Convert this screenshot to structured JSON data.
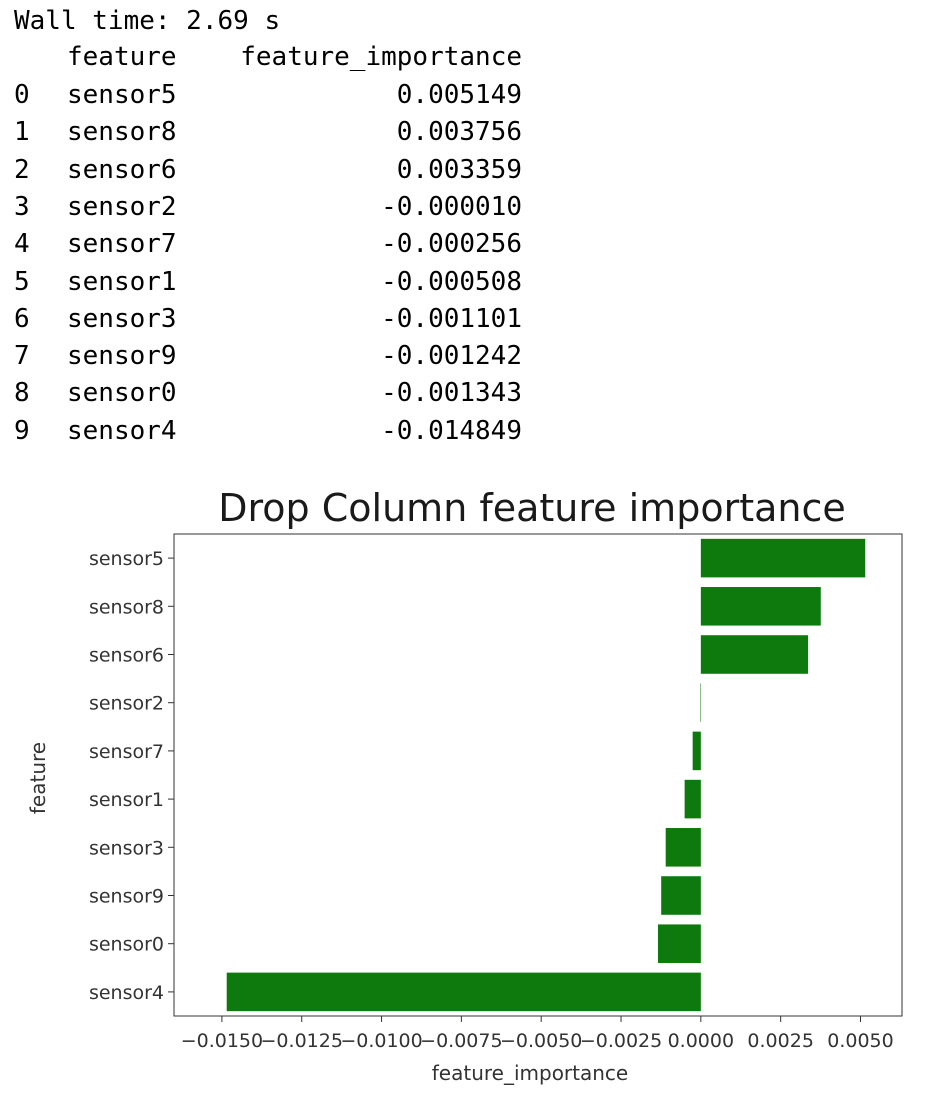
{
  "output": {
    "wall_time": "Wall time: 2.69 s",
    "table": {
      "columns": [
        "feature",
        "feature_importance"
      ],
      "rows": [
        {
          "index": "0",
          "feature": "sensor5",
          "value": "0.005149"
        },
        {
          "index": "1",
          "feature": "sensor8",
          "value": "0.003756"
        },
        {
          "index": "2",
          "feature": "sensor6",
          "value": "0.003359"
        },
        {
          "index": "3",
          "feature": "sensor2",
          "value": "-0.000010"
        },
        {
          "index": "4",
          "feature": "sensor7",
          "value": "-0.000256"
        },
        {
          "index": "5",
          "feature": "sensor1",
          "value": "-0.000508"
        },
        {
          "index": "6",
          "feature": "sensor3",
          "value": "-0.001101"
        },
        {
          "index": "7",
          "feature": "sensor9",
          "value": "-0.001242"
        },
        {
          "index": "8",
          "feature": "sensor0",
          "value": "-0.001343"
        },
        {
          "index": "9",
          "feature": "sensor4",
          "value": "-0.014849"
        }
      ]
    }
  },
  "chart_data": {
    "type": "bar",
    "orientation": "horizontal",
    "title": "Drop Column feature importance",
    "xlabel": "feature_importance",
    "ylabel": "feature",
    "categories": [
      "sensor5",
      "sensor8",
      "sensor6",
      "sensor2",
      "sensor7",
      "sensor1",
      "sensor3",
      "sensor9",
      "sensor0",
      "sensor4"
    ],
    "values": [
      0.005149,
      0.003756,
      0.003359,
      -1e-05,
      -0.000256,
      -0.000508,
      -0.001101,
      -0.001242,
      -0.001343,
      -0.014849
    ],
    "xlim": [
      -0.0165,
      0.0063
    ],
    "xticks": [
      -0.015,
      -0.0125,
      -0.01,
      -0.0075,
      -0.005,
      -0.0025,
      0.0,
      0.0025,
      0.005
    ],
    "xtick_labels": [
      "−0.0150",
      "−0.0125",
      "−0.0100",
      "−0.0075",
      "−0.0050",
      "−0.0025",
      "0.0000",
      "0.0025",
      "0.0050"
    ],
    "bar_color": "#0e7a0d",
    "grid": false,
    "legend": "none"
  }
}
